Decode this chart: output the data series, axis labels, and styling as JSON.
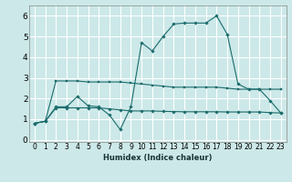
{
  "title": "",
  "xlabel": "Humidex (Indice chaleur)",
  "bg_color": "#cce8e8",
  "line_color": "#1a6b6b",
  "grid_color": "#ffffff",
  "ylim": [
    -0.1,
    6.5
  ],
  "xlim": [
    -0.5,
    23.5
  ],
  "line1_x": [
    0,
    1,
    2,
    3,
    4,
    5,
    6,
    7,
    8,
    9,
    10,
    11,
    12,
    13,
    14,
    15,
    16,
    17,
    18,
    19,
    20,
    21,
    22,
    23
  ],
  "line1_y": [
    0.8,
    0.9,
    2.85,
    2.85,
    2.85,
    2.8,
    2.8,
    2.8,
    2.8,
    2.75,
    2.7,
    2.65,
    2.6,
    2.55,
    2.55,
    2.55,
    2.55,
    2.55,
    2.5,
    2.45,
    2.45,
    2.45,
    2.45,
    2.45
  ],
  "line2_x": [
    0,
    1,
    2,
    3,
    4,
    5,
    6,
    7,
    8,
    9,
    10,
    11,
    12,
    13,
    14,
    15,
    16,
    17,
    18,
    19,
    20,
    21,
    22,
    23
  ],
  "line2_y": [
    0.8,
    0.9,
    1.6,
    1.6,
    2.1,
    1.65,
    1.6,
    1.2,
    0.5,
    1.6,
    4.7,
    4.3,
    5.0,
    5.6,
    5.65,
    5.65,
    5.65,
    6.0,
    5.1,
    2.7,
    2.45,
    2.45,
    1.9,
    1.3
  ],
  "line3_x": [
    0,
    1,
    2,
    3,
    4,
    5,
    6,
    7,
    8,
    9,
    10,
    11,
    12,
    13,
    14,
    15,
    16,
    17,
    18,
    19,
    20,
    21,
    22,
    23
  ],
  "line3_y": [
    0.8,
    0.9,
    1.55,
    1.55,
    1.55,
    1.55,
    1.55,
    1.5,
    1.45,
    1.4,
    1.4,
    1.4,
    1.38,
    1.37,
    1.36,
    1.36,
    1.36,
    1.36,
    1.35,
    1.35,
    1.35,
    1.35,
    1.32,
    1.3
  ],
  "xticks": [
    0,
    1,
    2,
    3,
    4,
    5,
    6,
    7,
    8,
    9,
    10,
    11,
    12,
    13,
    14,
    15,
    16,
    17,
    18,
    19,
    20,
    21,
    22,
    23
  ],
  "yticks": [
    0,
    1,
    2,
    3,
    4,
    5,
    6
  ],
  "xlabel_fontsize": 6.0,
  "xlabel_color": "#1a3333",
  "tick_fontsize": 5.5,
  "ytick_fontsize": 6.5
}
